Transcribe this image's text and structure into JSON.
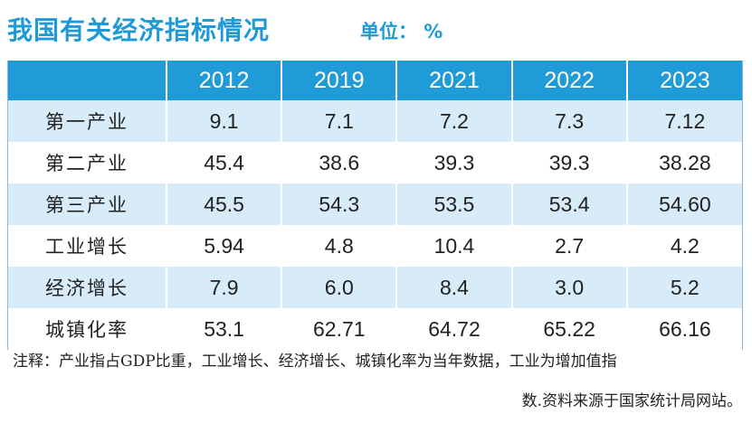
{
  "title": "我国有关经济指标情况",
  "unit_label": "单位：  %",
  "chart_data": {
    "type": "table",
    "title": "我国有关经济指标情况",
    "unit": "%",
    "columns": [
      "2012",
      "2019",
      "2021",
      "2022",
      "2023"
    ],
    "rows": [
      {
        "label": "第一产业",
        "values": [
          "9.1",
          "7.1",
          "7.2",
          "7.3",
          "7.12"
        ]
      },
      {
        "label": "第二产业",
        "values": [
          "45.4",
          "38.6",
          "39.3",
          "39.3",
          "38.28"
        ]
      },
      {
        "label": "第三产业",
        "values": [
          "45.5",
          "54.3",
          "53.5",
          "53.4",
          "54.60"
        ]
      },
      {
        "label": "工业增长",
        "values": [
          "5.94",
          "4.8",
          "10.4",
          "2.7",
          "4.2"
        ]
      },
      {
        "label": "经济增长",
        "values": [
          "7.9",
          "6.0",
          "8.4",
          "3.0",
          "5.2"
        ]
      },
      {
        "label": "城镇化率",
        "values": [
          "53.1",
          "62.71",
          "64.72",
          "65.22",
          "66.16"
        ]
      }
    ]
  },
  "note_line1": "注释：产业指占GDP比重，工业增长、经济增长、城镇化率为当年数据，工业为增加值指",
  "note_line2": "数.资料来源于国家统计局网站。",
  "colors": {
    "accent": "#1f9bd7",
    "stripe": "#d7ecf8"
  }
}
